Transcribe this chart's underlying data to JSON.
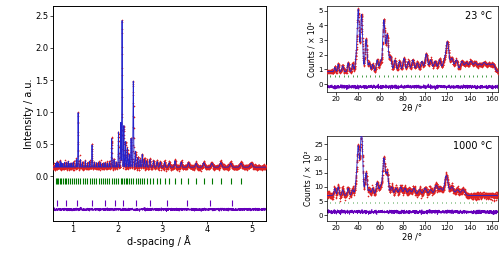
{
  "left_panel": {
    "xlabel": "d-spacing / Å",
    "ylabel": "Intensity / a.u.",
    "xlim": [
      0.55,
      5.3
    ],
    "ylim": [
      -0.7,
      2.65
    ],
    "yticks": [
      0.0,
      0.5,
      1.0,
      1.5,
      2.0,
      2.5
    ],
    "xticks": [
      1,
      2,
      3,
      4,
      5
    ],
    "bragg_y_green": -0.08,
    "bragg_y_purple": -0.42,
    "data_color": "#dd2222",
    "fit_color": "#2222cc",
    "diff_color": "#6600bb",
    "bragg_color_green": "#007700",
    "bragg_color_purple": "#6600bb"
  },
  "top_right_panel": {
    "title": "23 °C",
    "xlabel": "2θ /°",
    "ylabel": "Counts / × 10⁴",
    "xlim": [
      12,
      165
    ],
    "ylim": [
      -0.5,
      5.3
    ],
    "yticks": [
      0,
      1,
      2,
      3,
      4,
      5
    ],
    "xticks": [
      20,
      40,
      60,
      80,
      100,
      120,
      140,
      160
    ],
    "bragg_y_green": 0.55,
    "bragg_y_purple": 0.15,
    "data_color": "#dd2222",
    "fit_color": "#2222cc",
    "diff_color": "#6600bb",
    "bragg_color_green": "#007700",
    "bragg_color_purple": "#6600bb"
  },
  "bottom_right_panel": {
    "title": "1000 °C",
    "xlabel": "2θ /°",
    "ylabel": "Counts / × 10²",
    "xlim": [
      12,
      165
    ],
    "ylim": [
      -2,
      28
    ],
    "yticks": [
      0,
      5,
      10,
      15,
      20,
      25
    ],
    "xticks": [
      20,
      40,
      60,
      80,
      100,
      120,
      140,
      160
    ],
    "bragg_y_green": 4.5,
    "bragg_y_purple": 1.5,
    "data_color": "#dd2222",
    "fit_color": "#2222cc",
    "diff_color": "#6600bb",
    "bragg_color_green": "#007700",
    "bragg_color_purple": "#6600bb"
  },
  "background_color": "#ffffff",
  "font_size_label": 7,
  "font_size_tick": 6,
  "font_size_title": 7
}
